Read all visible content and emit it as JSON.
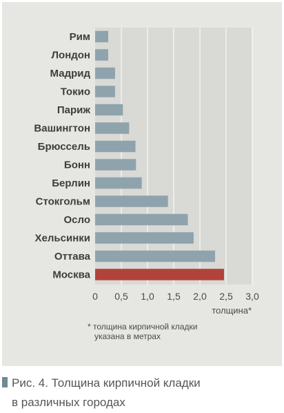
{
  "chart_data": {
    "type": "bar",
    "orientation": "horizontal",
    "categories": [
      "Рим",
      "Лондон",
      "Мадрид",
      "Токио",
      "Париж",
      "Вашингтон",
      "Брюссель",
      "Бонн",
      "Берлин",
      "Стокгольм",
      "Осло",
      "Хельсинки",
      "Оттава",
      "Москва"
    ],
    "values": [
      0.25,
      0.25,
      0.38,
      0.38,
      0.53,
      0.65,
      0.77,
      0.78,
      0.89,
      1.39,
      1.77,
      1.88,
      2.29,
      2.46
    ],
    "highlight": "Москва",
    "ticks": [
      "0",
      "0,5",
      "1,0",
      "1,5",
      "2,0",
      "2,5",
      "3,0"
    ],
    "xlim": [
      0,
      3.0
    ],
    "xlabel": "толщина*",
    "grid": true,
    "colors": {
      "bar": "#8fa3ad",
      "highlight": "#b0443a",
      "plot_bg": "#d9d9d6",
      "grid": "#ffffff"
    }
  },
  "note": {
    "line1": "* толщина кирпичной кладки",
    "line2": "указана в метрах"
  },
  "caption": {
    "line1": "Рис. 4. Толщина кирпичной кладки",
    "line2": "в различных городах"
  }
}
